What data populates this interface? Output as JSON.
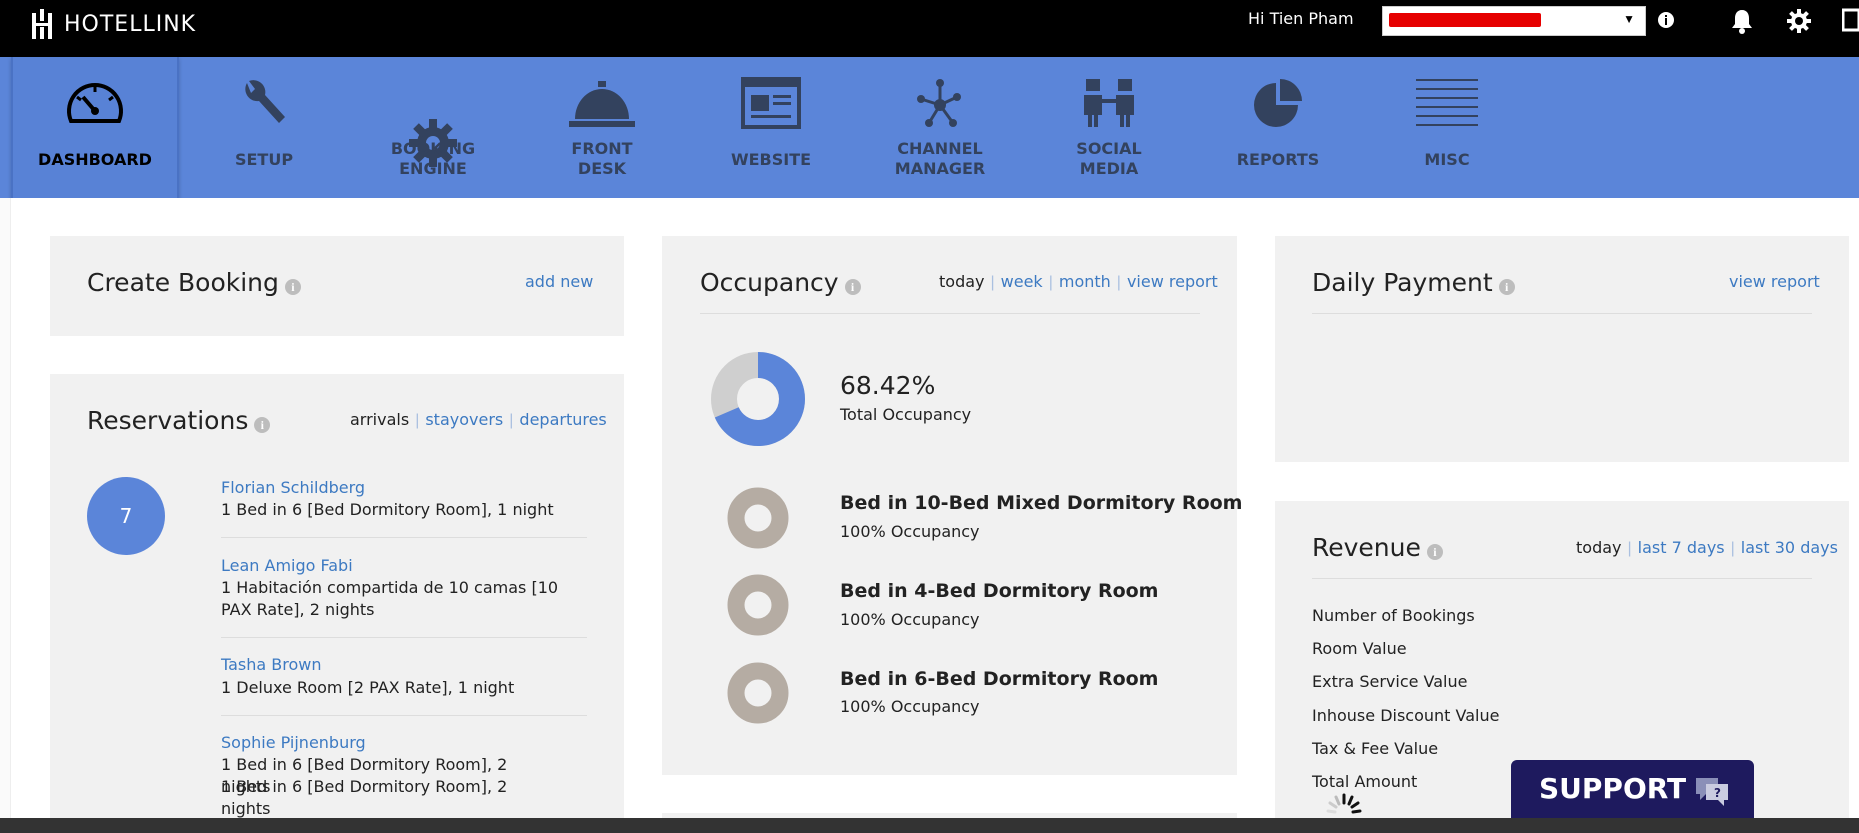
{
  "topbar": {
    "logo_text": "HOTELLINK",
    "greeting": "Hi Tien Pham",
    "icons": [
      "info-icon",
      "bell-icon",
      "gear-icon",
      "logout-icon"
    ]
  },
  "nav": {
    "items": [
      {
        "label": "DASHBOARD",
        "icon": "gauge-icon"
      },
      {
        "label": "SETUP",
        "icon": "wrench-icon"
      },
      {
        "label": "BOOKING\nENGINE",
        "icon": "gear-icon"
      },
      {
        "label": "FRONT\nDESK",
        "icon": "bell-icon"
      },
      {
        "label": "WEBSITE",
        "icon": "browser-icon"
      },
      {
        "label": "CHANNEL\nMANAGER",
        "icon": "network-icon"
      },
      {
        "label": "SOCIAL\nMEDIA",
        "icon": "people-icon"
      },
      {
        "label": "REPORTS",
        "icon": "piechart-icon"
      },
      {
        "label": "MISC",
        "icon": "lines-icon"
      }
    ]
  },
  "create_booking": {
    "title": "Create Booking",
    "add_new": "add new"
  },
  "reservations": {
    "title": "Reservations",
    "tabs": {
      "arrivals": "arrivals",
      "stayovers": "stayovers",
      "departures": "departures"
    },
    "count": "7",
    "items": [
      {
        "name": "Florian Schildberg",
        "lines": [
          "1 Bed in 6 [Bed Dormitory Room], 1 night"
        ]
      },
      {
        "name": "Lean Amigo Fabi",
        "lines": [
          "1 Habitación compartida de 10 camas [10",
          "PAX Rate], 2 nights"
        ]
      },
      {
        "name": "Tasha Brown",
        "lines": [
          "1 Deluxe Room [2 PAX Rate], 1 night"
        ]
      },
      {
        "name": "Sophie Pijnenburg",
        "lines": [
          "1 Bed in 6 [Bed Dormitory Room], 2 nights",
          "1 Bed in 6 [Bed Dormitory Room], 2 nights"
        ]
      }
    ]
  },
  "occupancy": {
    "title": "Occupancy",
    "tabs": {
      "today": "today",
      "week": "week",
      "month": "month",
      "view_report": "view report"
    },
    "total_pct": "68.42%",
    "total_label": "Total Occupancy",
    "total_fraction": 0.6842,
    "colors": {
      "filled": "#5b85d9",
      "empty": "#cfcfcf",
      "room": "#b5aca3"
    },
    "rooms": [
      {
        "name": "Bed in 10-Bed Mixed Dormitory Room",
        "occ": "100% Occupancy"
      },
      {
        "name": "Bed in 4-Bed Dormitory Room",
        "occ": "100% Occupancy"
      },
      {
        "name": "Bed in 6-Bed Dormitory Room",
        "occ": "100% Occupancy"
      }
    ]
  },
  "daily_payment": {
    "title": "Daily Payment",
    "view_report": "view report"
  },
  "revenue": {
    "title": "Revenue",
    "tabs": {
      "today": "today",
      "last7": "last 7 days",
      "last30": "last 30 days"
    },
    "rows": [
      "Number of Bookings",
      "Room Value",
      "Extra Service Value",
      "Inhouse Discount Value",
      "Tax & Fee Value",
      "Total Amount"
    ]
  },
  "support": {
    "label": "SUPPORT"
  }
}
